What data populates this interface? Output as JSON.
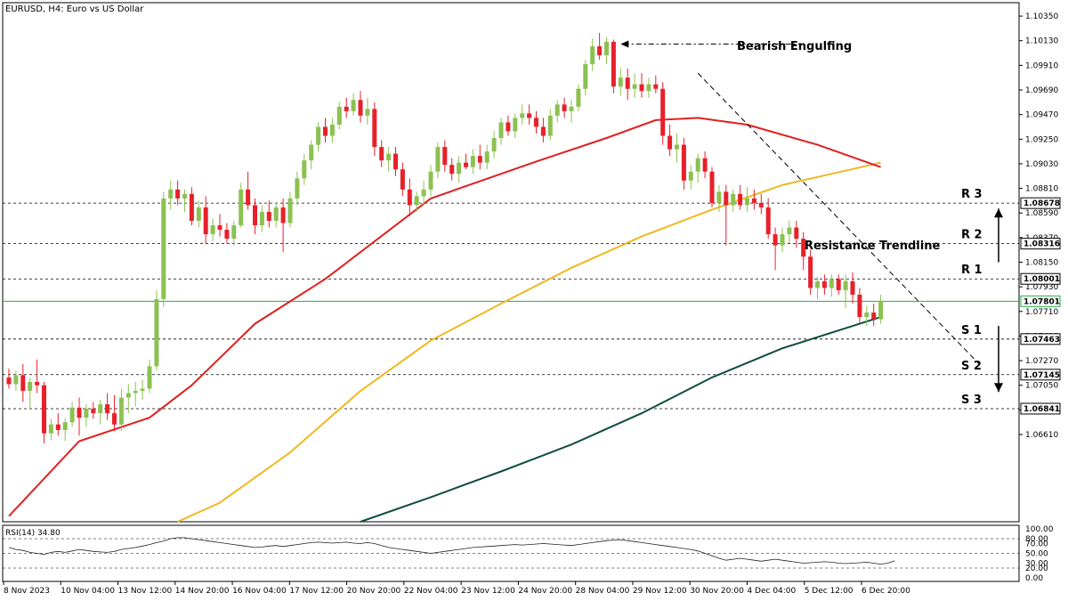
{
  "chart_data": {
    "type": "candlestick",
    "title": "EURUSD, H4:  Euro vs US Dollar",
    "y_axis": {
      "range": [
        1.0583,
        1.1047
      ],
      "tick_labels": [
        "1.10350",
        "1.10130",
        "1.09910",
        "1.09690",
        "1.09470",
        "1.09250",
        "1.09030",
        "1.08810",
        "1.08590",
        "1.08370",
        "1.08150",
        "1.07930",
        "1.07710",
        "1.07490",
        "1.07270",
        "1.07050",
        "1.06830",
        "1.06610"
      ]
    },
    "x_axis": {
      "tick_labels": [
        "8 Nov 2023",
        "10 Nov 04:00",
        "13 Nov 12:00",
        "14 Nov 20:00",
        "16 Nov 04:00",
        "17 Nov 12:00",
        "20 Nov 20:00",
        "22 Nov 04:00",
        "23 Nov 12:00",
        "24 Nov 20:00",
        "28 Nov 04:00",
        "29 Nov 12:00",
        "30 Nov 20:00",
        "4 Dec 04:00",
        "5 Dec 12:00",
        "6 Dec 20:00"
      ]
    },
    "colors": {
      "bull": "#8cc152",
      "bear": "#e8202a",
      "ma_fast": "#e02020",
      "ma_mid": "#f0b820",
      "ma_slow": "#0f4d40",
      "level_line": "#000000",
      "current_line": "#20b040",
      "trendline": "#000000"
    },
    "price_tags": [
      {
        "label": "1.08678",
        "value": 1.08678,
        "kind": "level"
      },
      {
        "label": "1.08316",
        "value": 1.08316,
        "kind": "level"
      },
      {
        "label": "1.08001",
        "value": 1.08001,
        "kind": "level"
      },
      {
        "label": "1.07801",
        "value": 1.07801,
        "kind": "current"
      },
      {
        "label": "1.07463",
        "value": 1.07463,
        "kind": "level"
      },
      {
        "label": "1.07145",
        "value": 1.07145,
        "kind": "level"
      },
      {
        "label": "1.06841",
        "value": 1.06841,
        "kind": "level"
      }
    ],
    "levels": [
      {
        "label": "R 3",
        "value": 1.08678
      },
      {
        "label": "R 2",
        "value": 1.08316
      },
      {
        "label": "R 1",
        "value": 1.08001
      },
      {
        "label": "S 1",
        "value": 1.07463
      },
      {
        "label": "S 2",
        "value": 1.07145
      },
      {
        "label": "S 3",
        "value": 1.06841
      }
    ],
    "annotations": {
      "engulfing": "Bearish Engulfing",
      "trendline": "Resistance Trendline"
    },
    "candles": [
      [
        1.0712,
        1.072,
        1.0702,
        1.0706
      ],
      [
        1.0706,
        1.0718,
        1.07,
        1.0714
      ],
      [
        1.0714,
        1.0724,
        1.069,
        1.07
      ],
      [
        1.07,
        1.0712,
        1.0684,
        1.0708
      ],
      [
        1.0708,
        1.0728,
        1.0698,
        1.0705
      ],
      [
        1.0705,
        1.0708,
        1.0653,
        1.0662
      ],
      [
        1.0662,
        1.0675,
        1.0656,
        1.067
      ],
      [
        1.067,
        1.068,
        1.066,
        1.0665
      ],
      [
        1.0665,
        1.0676,
        1.0655,
        1.0672
      ],
      [
        1.0672,
        1.069,
        1.0668,
        1.0685
      ],
      [
        1.0685,
        1.0694,
        1.066,
        1.0676
      ],
      [
        1.0676,
        1.0688,
        1.0668,
        1.0684
      ],
      [
        1.0684,
        1.069,
        1.0675,
        1.068
      ],
      [
        1.068,
        1.0692,
        1.067,
        1.0688
      ],
      [
        1.0688,
        1.0698,
        1.0674,
        1.068
      ],
      [
        1.068,
        1.0696,
        1.0664,
        1.067
      ],
      [
        1.067,
        1.0702,
        1.0664,
        1.0694
      ],
      [
        1.0694,
        1.0706,
        1.068,
        1.0698
      ],
      [
        1.0698,
        1.0708,
        1.0686,
        1.07
      ],
      [
        1.07,
        1.071,
        1.0692,
        1.0702
      ],
      [
        1.0702,
        1.0728,
        1.0698,
        1.0722
      ],
      [
        1.0722,
        1.079,
        1.0718,
        1.0782
      ],
      [
        1.0782,
        1.0878,
        1.0775,
        1.0872
      ],
      [
        1.0872,
        1.0888,
        1.0862,
        1.088
      ],
      [
        1.088,
        1.0888,
        1.0866,
        1.0872
      ],
      [
        1.0872,
        1.088,
        1.086,
        1.0876
      ],
      [
        1.0876,
        1.0882,
        1.0848,
        1.0852
      ],
      [
        1.0852,
        1.087,
        1.0846,
        1.0864
      ],
      [
        1.0864,
        1.0874,
        1.0832,
        1.084
      ],
      [
        1.084,
        1.0854,
        1.0834,
        1.0848
      ],
      [
        1.0848,
        1.0858,
        1.0838,
        1.0844
      ],
      [
        1.0844,
        1.085,
        1.0832,
        1.0836
      ],
      [
        1.0836,
        1.0852,
        1.083,
        1.0848
      ],
      [
        1.0848,
        1.0886,
        1.0846,
        1.088
      ],
      [
        1.088,
        1.0896,
        1.0862,
        1.0866
      ],
      [
        1.0866,
        1.0872,
        1.084,
        1.0848
      ],
      [
        1.0848,
        1.0866,
        1.0842,
        1.086
      ],
      [
        1.086,
        1.087,
        1.0846,
        1.0852
      ],
      [
        1.0852,
        1.0868,
        1.0846,
        1.0864
      ],
      [
        1.0864,
        1.0872,
        1.0824,
        1.085
      ],
      [
        1.085,
        1.0878,
        1.0846,
        1.0872
      ],
      [
        1.0872,
        1.0896,
        1.0866,
        1.089
      ],
      [
        1.089,
        1.0912,
        1.0884,
        1.0906
      ],
      [
        1.0906,
        1.0924,
        1.0898,
        1.092
      ],
      [
        1.092,
        1.094,
        1.0914,
        1.0936
      ],
      [
        1.0936,
        1.0944,
        1.0922,
        1.0928
      ],
      [
        1.0928,
        1.0944,
        1.0922,
        1.0938
      ],
      [
        1.0938,
        1.0958,
        1.0934,
        1.0954
      ],
      [
        1.0954,
        1.0962,
        1.0944,
        1.095
      ],
      [
        1.095,
        1.0966,
        1.0946,
        1.096
      ],
      [
        1.096,
        1.0968,
        1.094,
        1.0946
      ],
      [
        1.0946,
        1.0962,
        1.0938,
        1.0952
      ],
      [
        1.0952,
        1.0958,
        1.091,
        1.0918
      ],
      [
        1.0918,
        1.0924,
        1.09,
        1.0906
      ],
      [
        1.0906,
        1.0918,
        1.0896,
        1.0912
      ],
      [
        1.0912,
        1.0918,
        1.0892,
        1.0898
      ],
      [
        1.0898,
        1.0904,
        1.0874,
        1.088
      ],
      [
        1.088,
        1.089,
        1.0856,
        1.0866
      ],
      [
        1.0866,
        1.0878,
        1.086,
        1.0874
      ],
      [
        1.0874,
        1.0888,
        1.0866,
        1.088
      ],
      [
        1.088,
        1.0902,
        1.0874,
        1.0896
      ],
      [
        1.0896,
        1.0922,
        1.089,
        1.0918
      ],
      [
        1.0918,
        1.0924,
        1.0896,
        1.0902
      ],
      [
        1.0902,
        1.0908,
        1.0888,
        1.0894
      ],
      [
        1.0894,
        1.091,
        1.0886,
        1.0904
      ],
      [
        1.0904,
        1.0912,
        1.0898,
        1.09
      ],
      [
        1.09,
        1.0916,
        1.0894,
        1.091
      ],
      [
        1.091,
        1.092,
        1.0898,
        1.0904
      ],
      [
        1.0904,
        1.092,
        1.0898,
        1.0914
      ],
      [
        1.0914,
        1.0932,
        1.0908,
        1.0926
      ],
      [
        1.0926,
        1.0944,
        1.092,
        1.094
      ],
      [
        1.094,
        1.0946,
        1.0928,
        1.0932
      ],
      [
        1.0932,
        1.0948,
        1.0926,
        1.0944
      ],
      [
        1.0944,
        1.0956,
        1.0938,
        1.0948
      ],
      [
        1.0948,
        1.0956,
        1.0938,
        1.0944
      ],
      [
        1.0944,
        1.095,
        1.093,
        1.0936
      ],
      [
        1.0936,
        1.0944,
        1.0922,
        1.0928
      ],
      [
        1.0928,
        1.0952,
        1.0924,
        1.0946
      ],
      [
        1.0946,
        1.096,
        1.094,
        1.0956
      ],
      [
        1.0956,
        1.0962,
        1.0944,
        1.095
      ],
      [
        1.095,
        1.096,
        1.094,
        1.0954
      ],
      [
        1.0954,
        1.0974,
        1.095,
        1.097
      ],
      [
        1.097,
        1.0996,
        1.0964,
        1.0992
      ],
      [
        1.0992,
        1.1015,
        1.0986,
        1.1008
      ],
      [
        1.1008,
        1.102,
        1.0996,
        1.1
      ],
      [
        1.1,
        1.1016,
        1.0992,
        1.1012
      ],
      [
        1.1012,
        1.1014,
        1.0966,
        1.0972
      ],
      [
        1.0972,
        1.0988,
        1.0964,
        1.098
      ],
      [
        1.098,
        1.0988,
        1.096,
        1.097
      ],
      [
        1.097,
        1.0984,
        1.0962,
        1.0974
      ],
      [
        1.0974,
        1.0984,
        1.0962,
        1.0968
      ],
      [
        1.0968,
        1.098,
        1.0962,
        1.0974
      ],
      [
        1.0974,
        1.0982,
        1.0966,
        1.097
      ],
      [
        1.097,
        1.0976,
        1.092,
        1.0928
      ],
      [
        1.0928,
        1.0938,
        1.091,
        1.0916
      ],
      [
        1.0916,
        1.093,
        1.0904,
        1.092
      ],
      [
        1.092,
        1.0926,
        1.088,
        1.0888
      ],
      [
        1.0888,
        1.0902,
        1.088,
        1.0896
      ],
      [
        1.0896,
        1.0912,
        1.0886,
        1.0908
      ],
      [
        1.0908,
        1.0914,
        1.089,
        1.0896
      ],
      [
        1.0896,
        1.09,
        1.0864,
        1.0868
      ],
      [
        1.0868,
        1.0884,
        1.086,
        1.0878
      ],
      [
        1.0878,
        1.0884,
        1.083,
        1.0866
      ],
      [
        1.0866,
        1.088,
        1.086,
        1.0876
      ],
      [
        1.0876,
        1.0884,
        1.0862,
        1.0866
      ],
      [
        1.0866,
        1.0882,
        1.086,
        1.0872
      ],
      [
        1.0872,
        1.088,
        1.0862,
        1.0868
      ],
      [
        1.0868,
        1.0876,
        1.0858,
        1.0864
      ],
      [
        1.0864,
        1.0872,
        1.0836,
        1.084
      ],
      [
        1.084,
        1.0846,
        1.0808,
        1.083
      ],
      [
        1.083,
        1.0846,
        1.0824,
        1.084
      ],
      [
        1.084,
        1.0852,
        1.0832,
        1.0846
      ],
      [
        1.0846,
        1.0852,
        1.0828,
        1.0836
      ],
      [
        1.0836,
        1.0842,
        1.0808,
        1.082
      ],
      [
        1.082,
        1.0826,
        1.0786,
        1.0792
      ],
      [
        1.0792,
        1.0802,
        1.0782,
        1.0798
      ],
      [
        1.0798,
        1.0804,
        1.0786,
        1.0792
      ],
      [
        1.0792,
        1.0804,
        1.0784,
        1.08
      ],
      [
        1.08,
        1.0804,
        1.0786,
        1.079
      ],
      [
        1.079,
        1.0804,
        1.0774,
        1.0798
      ],
      [
        1.0798,
        1.0806,
        1.0778,
        1.0786
      ],
      [
        1.0786,
        1.0792,
        1.076,
        1.0766
      ],
      [
        1.0766,
        1.0776,
        1.0758,
        1.077
      ],
      [
        1.077,
        1.0778,
        1.0758,
        1.0764
      ],
      [
        1.0764,
        1.0786,
        1.076,
        1.078
      ]
    ],
    "ma_fast": {
      "x": [
        0,
        10,
        20,
        26,
        35,
        45,
        60,
        75,
        85,
        92,
        98,
        105,
        115,
        124
      ],
      "y": [
        1.0588,
        1.0655,
        1.0676,
        1.0705,
        1.076,
        1.08,
        1.0872,
        1.0905,
        1.0926,
        1.0942,
        1.0944,
        1.0938,
        1.092,
        1.09
      ]
    },
    "ma_mid": {
      "x": [
        24,
        30,
        40,
        50,
        60,
        70,
        80,
        90,
        100,
        110,
        124
      ],
      "y": [
        1.0583,
        1.06,
        1.0645,
        1.07,
        1.0745,
        1.0778,
        1.081,
        1.0838,
        1.0862,
        1.0884,
        1.0904
      ]
    },
    "ma_slow": {
      "x": [
        50,
        60,
        70,
        80,
        90,
        100,
        110,
        124
      ],
      "y": [
        1.0583,
        1.0605,
        1.0628,
        1.0652,
        1.068,
        1.0712,
        1.0738,
        1.0766
      ]
    },
    "trendline": {
      "x": [
        98,
        138
      ],
      "y": [
        1.0984,
        1.0724
      ]
    },
    "engulfing_arrow": {
      "x_from": 113,
      "x_to": 87,
      "y": 1.101
    },
    "arrows": [
      {
        "from": 1.0815,
        "to": 1.0863,
        "dir": "up"
      },
      {
        "from": 1.0758,
        "to": 1.0699,
        "dir": "down"
      }
    ],
    "rsi": {
      "title": "RSI(14) 34.80",
      "tick_labels": [
        "100.00",
        "80.00",
        "70.00",
        "50.00",
        "30.00",
        "20.00",
        "0.00"
      ],
      "levels": [
        80,
        50,
        20
      ],
      "values": [
        62,
        58,
        56,
        52,
        50,
        48,
        52,
        54,
        52,
        55,
        58,
        56,
        54,
        53,
        52,
        54,
        58,
        60,
        62,
        65,
        68,
        72,
        75,
        80,
        82,
        82,
        80,
        78,
        76,
        74,
        72,
        70,
        68,
        66,
        64,
        62,
        63,
        65,
        66,
        64,
        66,
        68,
        70,
        72,
        73,
        72,
        71,
        72,
        73,
        71,
        70,
        72,
        70,
        66,
        62,
        60,
        58,
        56,
        54,
        52,
        50,
        52,
        54,
        56,
        58,
        60,
        62,
        63,
        64,
        65,
        66,
        67,
        68,
        67,
        68,
        69,
        70,
        69,
        68,
        67,
        66,
        68,
        70,
        72,
        74,
        76,
        77,
        78,
        76,
        74,
        72,
        70,
        68,
        66,
        64,
        62,
        60,
        58,
        55,
        50,
        45,
        40,
        36,
        38,
        40,
        38,
        36,
        34,
        36,
        38,
        36,
        34,
        32,
        30,
        31,
        32,
        33,
        32,
        30,
        29,
        30,
        31,
        32,
        30,
        28,
        30,
        34.8
      ]
    }
  }
}
